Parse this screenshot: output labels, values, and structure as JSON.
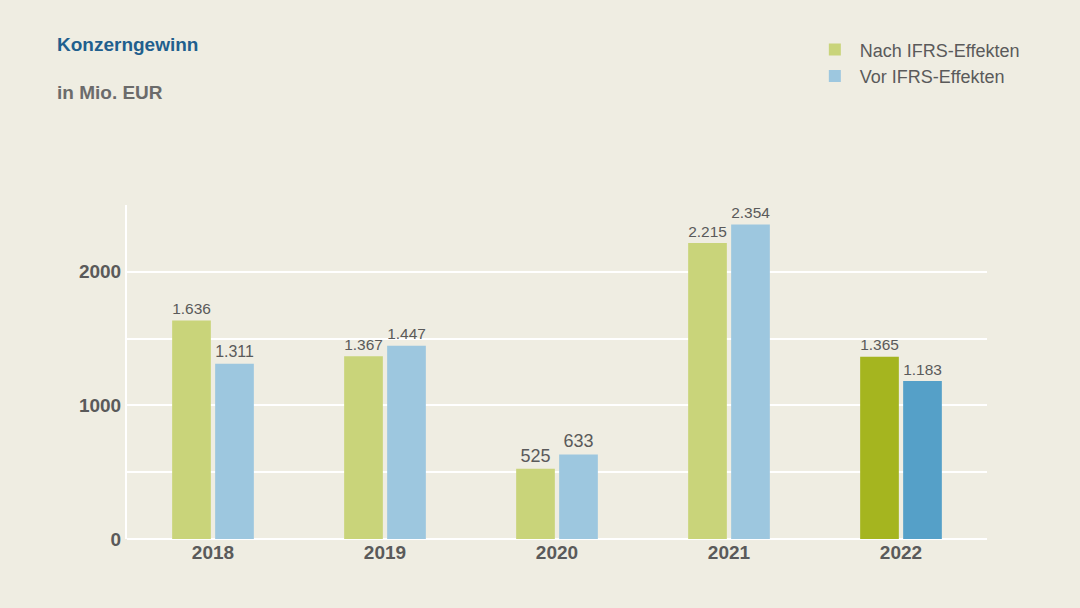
{
  "chart_data": {
    "type": "bar",
    "title": "Konzerngewinn",
    "subtitle": "in Mio. EUR",
    "categories": [
      "2018",
      "2019",
      "2020",
      "2021",
      "2022"
    ],
    "series": [
      {
        "name": "Nach IFRS-Effekten",
        "colors": [
          "#c9d47a",
          "#c9d47a",
          "#c9d47a",
          "#c9d47a",
          "#a5b51f"
        ],
        "values": [
          1636,
          1367,
          525,
          2215,
          1365
        ],
        "value_labels": [
          "1.636",
          "1.367",
          "525",
          "2.215",
          "1.365"
        ]
      },
      {
        "name": "Vor IFRS-Effekten",
        "colors": [
          "#9dc7df",
          "#9dc7df",
          "#9dc7df",
          "#9dc7df",
          "#55a0c8"
        ],
        "values": [
          1311,
          1447,
          633,
          2354,
          1183
        ],
        "value_labels": [
          "1.311",
          "1.447",
          "633",
          "2.354",
          "1.183"
        ]
      }
    ],
    "ylim": [
      0,
      2500
    ],
    "yticks": [
      0,
      1000,
      2000
    ],
    "grid": true,
    "legend": "top right",
    "data_labels": true
  }
}
